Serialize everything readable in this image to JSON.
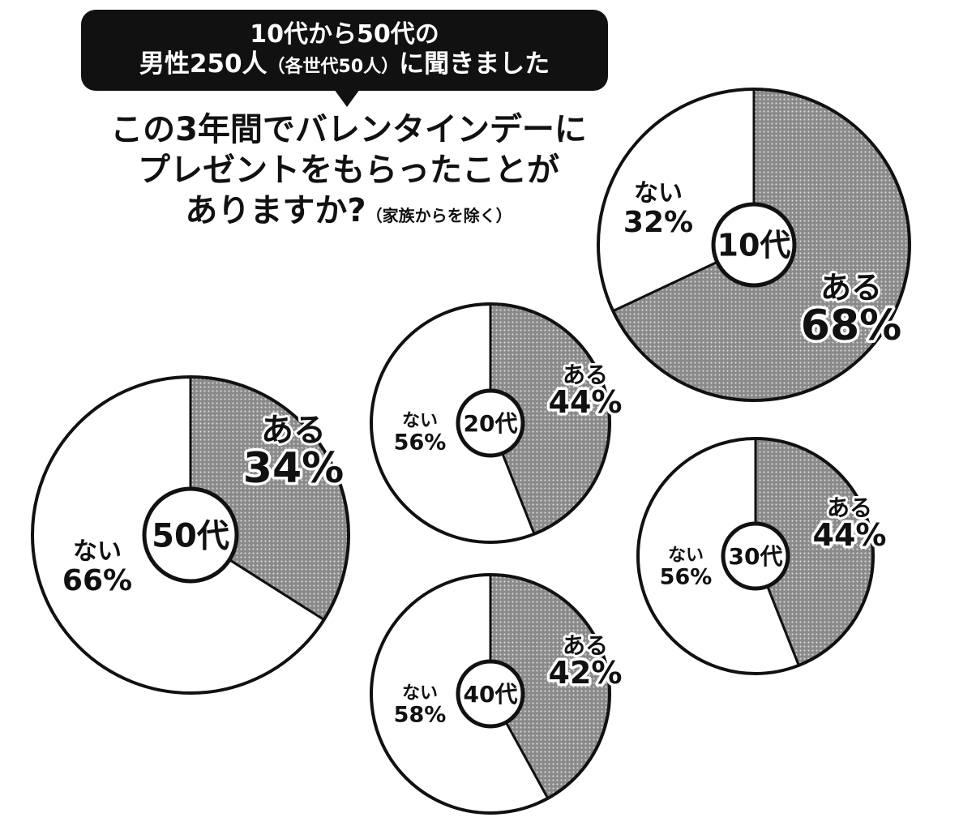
{
  "header": {
    "line1": "10代から50代の",
    "line2a": "男性250人",
    "line2b": "（各世代50人）",
    "line2c": "に聞きました"
  },
  "question": {
    "line1": "この3年間でバレンタインデーに",
    "line2": "プレゼントをもらったことが",
    "line3": "ありますか?",
    "note": "（家族からを除く）"
  },
  "colors": {
    "yes": "#777777",
    "no": "#ffffff",
    "outline": "#111111"
  },
  "chart_data": [
    {
      "type": "pie",
      "center_label": "10代",
      "categories": [
        "ある",
        "ない"
      ],
      "values": [
        68,
        32
      ],
      "yes_label": "ある",
      "yes_pct": "68%",
      "no_label": "ない",
      "no_pct": "32%"
    },
    {
      "type": "pie",
      "center_label": "20代",
      "categories": [
        "ある",
        "ない"
      ],
      "values": [
        44,
        56
      ],
      "yes_label": "ある",
      "yes_pct": "44%",
      "no_label": "ない",
      "no_pct": "56%"
    },
    {
      "type": "pie",
      "center_label": "30代",
      "categories": [
        "ある",
        "ない"
      ],
      "values": [
        44,
        56
      ],
      "yes_label": "ある",
      "yes_pct": "44%",
      "no_label": "ない",
      "no_pct": "56%"
    },
    {
      "type": "pie",
      "center_label": "40代",
      "categories": [
        "ある",
        "ない"
      ],
      "values": [
        42,
        58
      ],
      "yes_label": "ある",
      "yes_pct": "42%",
      "no_label": "ない",
      "no_pct": "58%"
    },
    {
      "type": "pie",
      "center_label": "50代",
      "categories": [
        "ある",
        "ない"
      ],
      "values": [
        34,
        66
      ],
      "yes_label": "ある",
      "yes_pct": "34%",
      "no_label": "ない",
      "no_pct": "66%"
    }
  ]
}
